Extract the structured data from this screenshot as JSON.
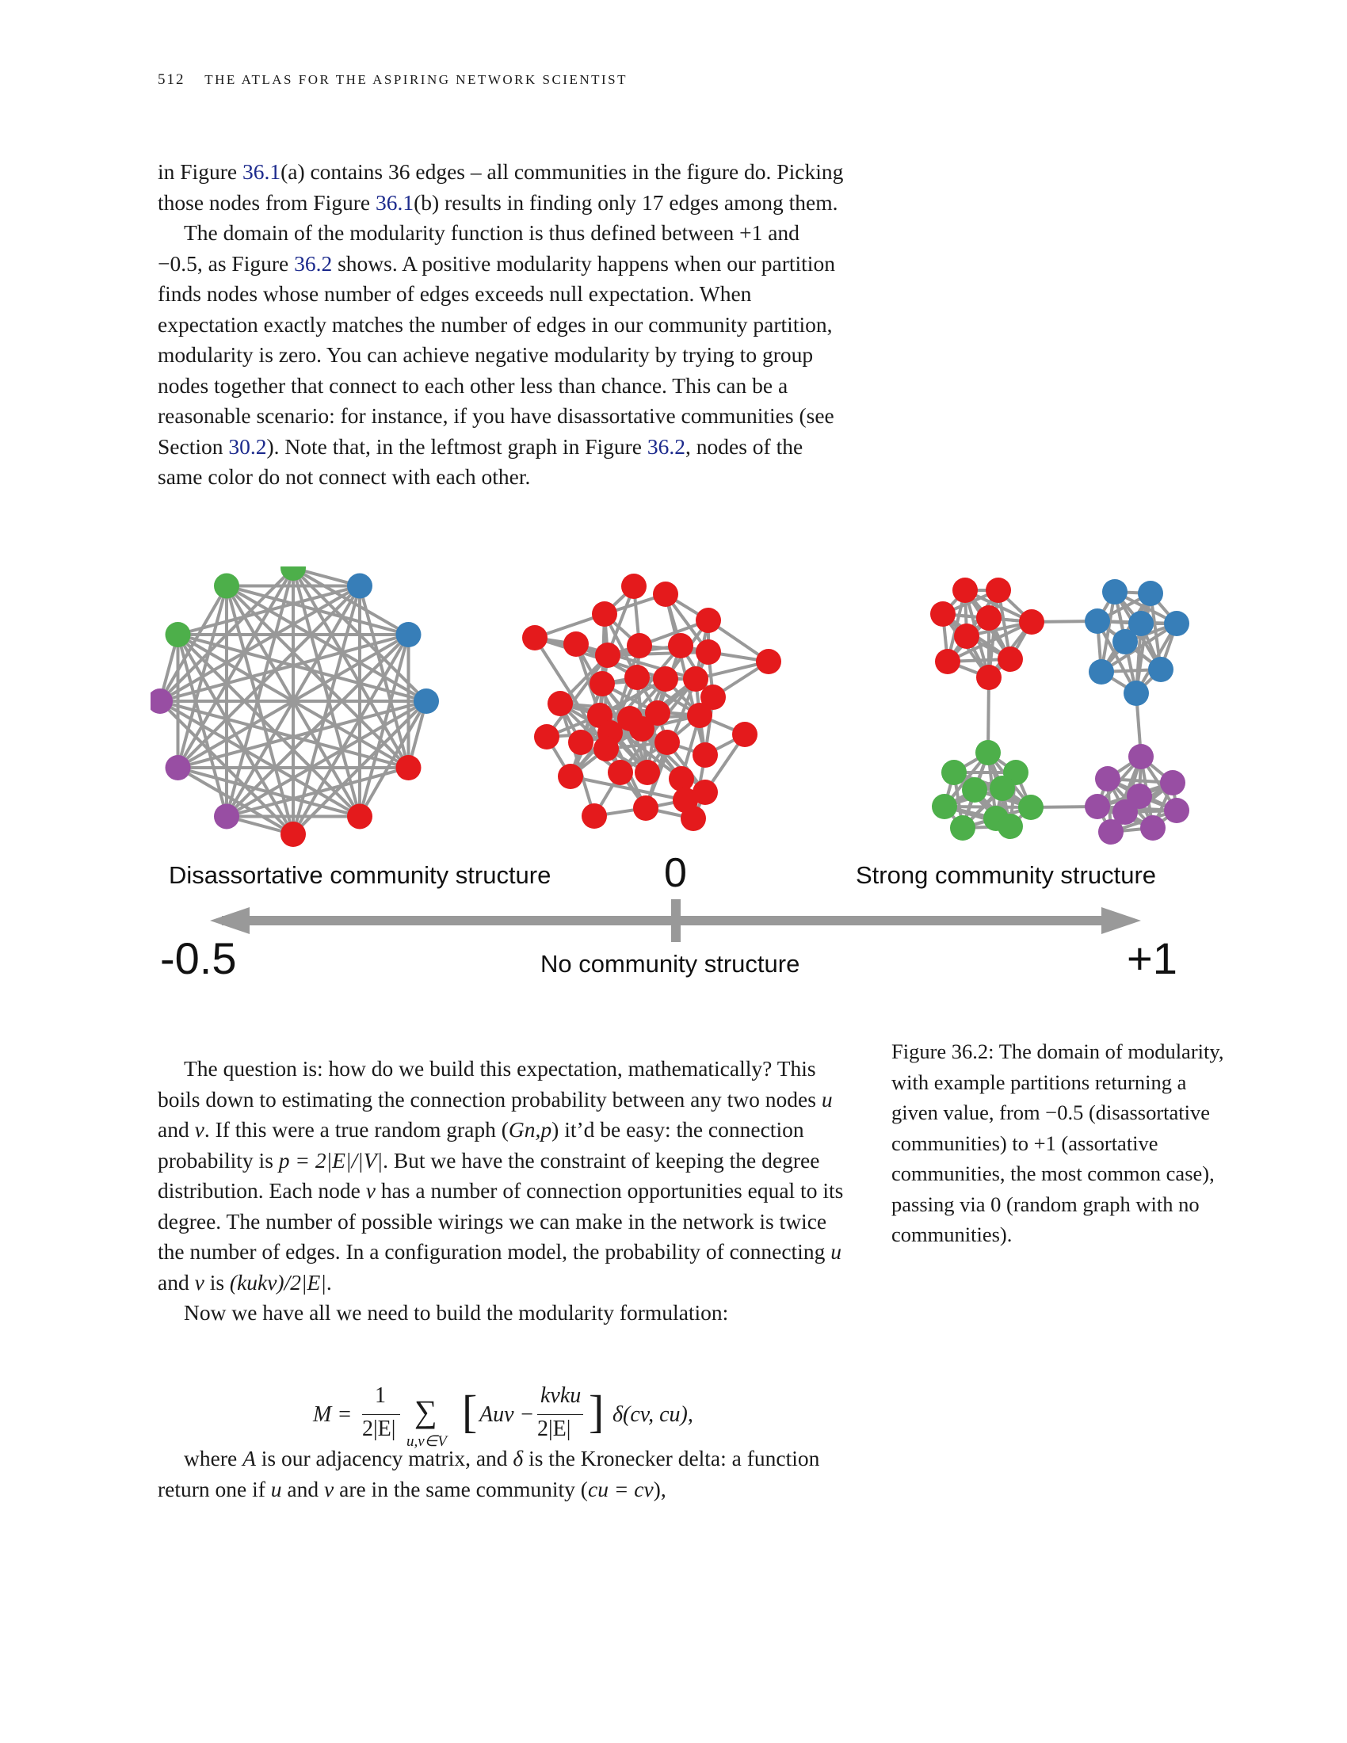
{
  "header": {
    "page_number": "512",
    "running_title": "the atlas for the aspiring network scientist"
  },
  "para1": {
    "s1": "in Figure ",
    "ref1": "36.1",
    "s2": "(a) contains 36 edges – all communities in the figure do. Picking those nodes from Figure ",
    "ref2": "36.1",
    "s3": "(b) results in finding only 17 edges among them."
  },
  "para2": {
    "s1": "The domain of the modularity function is thus defined between +1 and −0.5, as Figure ",
    "ref1": "36.2",
    "s2": " shows. A positive modularity happens when our partition finds nodes whose number of edges exceeds null expectation. When expectation exactly matches the number of edges in our community partition, modularity is zero. You can achieve negative modularity by trying to group nodes together that connect to each other less than chance. This can be a reasonable scenario: for instance, if you have disassortative communities (see Section ",
    "ref2": "30.2",
    "s3": "). Note that, in the leftmost graph in Figure ",
    "ref3": "36.2",
    "s4": ", nodes of the same color do not connect with each other."
  },
  "figure": {
    "label_disassortative": "Disassortative community structure",
    "label_zero": "0",
    "label_strong": "Strong community structure",
    "label_min": "-0.5",
    "label_none": "No community structure",
    "label_max": "+1",
    "colors": {
      "red": "#e41a1c",
      "blue": "#377eb8",
      "green": "#4daf4a",
      "purple": "#984ea3",
      "edge": "#999999",
      "axis": "#999999"
    }
  },
  "caption": "Figure 36.2: The domain of modularity, with example partitions returning a given value, from −0.5 (disassortative communities) to +1 (assortative communities, the most common case), passing via 0 (random graph with no communities).",
  "para3": {
    "s1": "The question is: how do we build this expectation, mathematically? This boils down to estimating the connection probability between any two nodes ",
    "u": "u",
    "s2": " and ",
    "v": "v",
    "s3": ". If this were a true random graph (",
    "gnp": "Gn,p",
    "s4": ") it’d be easy: the connection probability is ",
    "formula1": "p = 2|E|/|V|",
    "s5": ". But we have the constraint of keeping the degree distribution. Each node ",
    "v2": "v",
    "s6": " has a number of connection opportunities equal to its degree. The number of possible wirings we can make in the network is twice the number of edges. In a configuration model, the probability of connecting ",
    "u2": "u",
    "s7": " and ",
    "v3": "v",
    "s8": " is ",
    "formula2": "(kukv)/2|E|",
    "s9": "."
  },
  "para4": "Now we have all we need to build the modularity formulation:",
  "equation": {
    "lhs": "M =",
    "num1": "1",
    "den1": "2|E|",
    "sum": "∑",
    "sum_sub": "u,v∈V",
    "bracket_open": "[",
    "term": "Auv −",
    "num2": "kvku",
    "den2": "2|E|",
    "bracket_close": "]",
    "delta": "δ(cv, cu),"
  },
  "para5": {
    "s1": "where ",
    "A": "A",
    "s2": " is our adjacency matrix, and ",
    "delta": "δ",
    "s3": " is the Kronecker delta: a function return one if ",
    "u": "u",
    "s4": " and ",
    "v": "v",
    "s5": " are in the same community (",
    "cond": "cu = cv",
    "s6": "),"
  }
}
